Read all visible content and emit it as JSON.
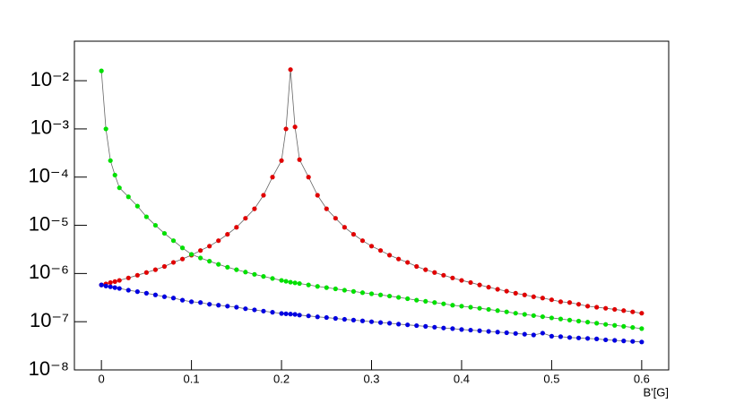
{
  "chart_data": {
    "type": "scatter",
    "x_label": "B'[G]",
    "x": [
      0,
      0.005,
      0.01,
      0.015,
      0.02,
      0.03,
      0.04,
      0.05,
      0.06,
      0.07,
      0.08,
      0.09,
      0.1,
      0.11,
      0.12,
      0.13,
      0.14,
      0.15,
      0.16,
      0.17,
      0.18,
      0.19,
      0.2,
      0.205,
      0.21,
      0.215,
      0.22,
      0.23,
      0.24,
      0.25,
      0.26,
      0.27,
      0.28,
      0.29,
      0.3,
      0.31,
      0.32,
      0.33,
      0.34,
      0.35,
      0.36,
      0.37,
      0.38,
      0.39,
      0.4,
      0.41,
      0.42,
      0.43,
      0.44,
      0.45,
      0.46,
      0.47,
      0.48,
      0.49,
      0.5,
      0.51,
      0.52,
      0.53,
      0.54,
      0.55,
      0.56,
      0.57,
      0.58,
      0.59,
      0.6
    ],
    "series": [
      {
        "color": "#e00000",
        "values": [
          5.8e-07,
          6.1e-07,
          6.5e-07,
          6.8e-07,
          7.2e-07,
          8.1e-07,
          9.2e-07,
          1.05e-06,
          1.2e-06,
          1.4e-06,
          1.7e-06,
          2e-06,
          2.4e-06,
          3e-06,
          3.7e-06,
          4.8e-06,
          6.5e-06,
          9.1e-06,
          1.4e-05,
          2.2e-05,
          4.2e-05,
          0.0001,
          0.00022,
          0.001,
          0.017,
          0.0011,
          0.00023,
          0.0001,
          4.2e-05,
          2.2e-05,
          1.4e-05,
          9.1e-06,
          6.5e-06,
          4.8e-06,
          3.7e-06,
          3e-06,
          2.4e-06,
          2e-06,
          1.7e-06,
          1.4e-06,
          1.2e-06,
          1.05e-06,
          9.2e-07,
          8.1e-07,
          7.2e-07,
          6.5e-07,
          5.8e-07,
          5.2e-07,
          4.7e-07,
          4.3e-07,
          3.9e-07,
          3.6e-07,
          3.3e-07,
          3.1e-07,
          2.85e-07,
          2.6e-07,
          2.5e-07,
          2.3e-07,
          2.1e-07,
          2e-07,
          1.9e-07,
          1.8e-07,
          1.7e-07,
          1.6e-07,
          1.5e-07
        ]
      },
      {
        "color": "#00e000",
        "values": [
          0.016,
          0.001,
          0.00022,
          0.00011,
          6e-05,
          3.9e-05,
          2.5e-05,
          1.5e-05,
          1e-05,
          6.8e-06,
          4.8e-06,
          3.4e-06,
          2.5e-06,
          2.1e-06,
          1.8e-06,
          1.55e-06,
          1.35e-06,
          1.2e-06,
          1.07e-06,
          9.6e-07,
          8.7e-07,
          7.9e-07,
          7.2e-07,
          6.9e-07,
          6.6e-07,
          6.4e-07,
          6.2e-07,
          5.8e-07,
          5.4e-07,
          5.1e-07,
          4.8e-07,
          4.5e-07,
          4.25e-07,
          4e-07,
          3.8e-07,
          3.6e-07,
          3.4e-07,
          3.2e-07,
          3e-07,
          2.8e-07,
          2.65e-07,
          2.5e-07,
          2.35e-07,
          2.2e-07,
          2.1e-07,
          2e-07,
          1.9e-07,
          1.8e-07,
          1.7e-07,
          1.6e-07,
          1.5e-07,
          1.42e-07,
          1.34e-07,
          1.27e-07,
          1.2e-07,
          1.14e-07,
          1.08e-07,
          1.03e-07,
          9.8e-08,
          9.3e-08,
          8.8e-08,
          8.4e-08,
          8e-08,
          7.6e-08,
          7.2e-08
        ]
      },
      {
        "color": "#0000e0",
        "values": [
          5.8e-07,
          5.5e-07,
          5.3e-07,
          5.1e-07,
          4.9e-07,
          4.5e-07,
          4.2e-07,
          3.9e-07,
          3.6e-07,
          3.3e-07,
          3.1e-07,
          2.8e-07,
          2.6e-07,
          2.5e-07,
          2.3e-07,
          2.2e-07,
          2.1e-07,
          2e-07,
          1.86e-07,
          1.76e-07,
          1.66e-07,
          1.57e-07,
          1.48e-07,
          1.46e-07,
          1.44e-07,
          1.42e-07,
          1.37e-07,
          1.32e-07,
          1.26e-07,
          1.22e-07,
          1.17e-07,
          1.12e-07,
          1.08e-07,
          1.04e-07,
          1e-07,
          9.6e-08,
          9.3e-08,
          8.9e-08,
          8.6e-08,
          8.3e-08,
          8e-08,
          7.7e-08,
          7.4e-08,
          7.2e-08,
          6.9e-08,
          6.7e-08,
          6.5e-08,
          6.3e-08,
          6.1e-08,
          5.9e-08,
          5.7e-08,
          5.5e-08,
          5.3e-08,
          5.8e-08,
          5e-08,
          4.9e-08,
          4.7e-08,
          4.6e-08,
          4.5e-08,
          4.4e-08,
          4.2e-08,
          4.1e-08,
          4e-08,
          3.9e-08,
          3.8e-08
        ]
      }
    ],
    "fit_line_color": "#666666",
    "xlim": [
      -0.03,
      0.63
    ],
    "xticks": [
      0,
      0.1,
      0.2,
      0.3,
      0.4,
      0.5,
      0.6
    ],
    "ylim": [
      1e-08,
      0.066
    ],
    "y_log": true,
    "yticks": [
      {
        "value": 1e-08,
        "label": "10⁻⁸"
      },
      {
        "value": 1e-07,
        "label": "10⁻⁷"
      },
      {
        "value": 1e-06,
        "label": "10⁻⁶"
      },
      {
        "value": 1e-05,
        "label": "10⁻⁵"
      },
      {
        "value": 0.0001,
        "label": "10⁻⁴"
      },
      {
        "value": 0.001,
        "label": "10⁻³"
      },
      {
        "value": 0.01,
        "label": "10⁻²"
      }
    ]
  }
}
